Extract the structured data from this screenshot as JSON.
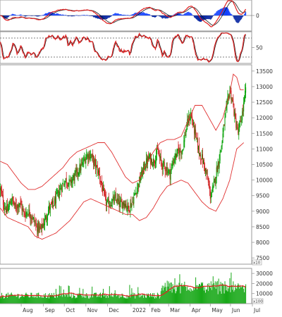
{
  "colors": {
    "background": "#ffffff",
    "border": "#9a9a9a",
    "up_candle": "#00a000",
    "down_candle": "#d02020",
    "bollinger": "#e03030",
    "macd_line": "#e02020",
    "macd_signal": "#1a1a1a",
    "histogram_positive": "#1040ff",
    "histogram_negative": "#0020a0",
    "volume_bar": "#18a818",
    "volume_ma": "#e02020",
    "stoch_line": "#e02020",
    "stoch_signal": "#202020",
    "reference_line": "#555555",
    "axis_text": "#333333"
  },
  "chart_data": [
    {
      "type": "bar",
      "panel": "macd",
      "y_ticks": [
        {
          "value": 0,
          "label": "0"
        }
      ],
      "ylim": [
        -1,
        1
      ]
    },
    {
      "type": "line",
      "panel": "stochastic",
      "y_ticks": [
        {
          "value": 50,
          "label": "50"
        }
      ],
      "reference_lines": [
        80,
        20
      ],
      "ylim": [
        0,
        100
      ]
    },
    {
      "type": "candlestick",
      "panel": "price",
      "ylim": [
        7300,
        13700
      ],
      "y_ticks": [
        {
          "value": 13500,
          "label": "13500"
        },
        {
          "value": 13000,
          "label": "13000"
        },
        {
          "value": 12500,
          "label": "12500"
        },
        {
          "value": 12000,
          "label": "12000"
        },
        {
          "value": 11500,
          "label": "11500"
        },
        {
          "value": 11000,
          "label": "11000"
        },
        {
          "value": 10500,
          "label": "10500"
        },
        {
          "value": 10000,
          "label": "10000"
        },
        {
          "value": 9500,
          "label": "9500"
        },
        {
          "value": 9000,
          "label": "9000"
        },
        {
          "value": 8500,
          "label": "8500"
        },
        {
          "value": 8000,
          "label": "8000"
        },
        {
          "value": 7500,
          "label": "7500"
        }
      ],
      "scale_unit": "x10",
      "close_path": [
        [
          0,
          9700
        ],
        [
          5,
          9200
        ],
        [
          10,
          9000
        ],
        [
          16,
          9400
        ],
        [
          22,
          9100
        ],
        [
          28,
          9300
        ],
        [
          34,
          8900
        ],
        [
          40,
          9000
        ],
        [
          46,
          8800
        ],
        [
          52,
          8500
        ],
        [
          58,
          8400
        ],
        [
          64,
          8700
        ],
        [
          70,
          9100
        ],
        [
          76,
          9200
        ],
        [
          82,
          9500
        ],
        [
          88,
          9800
        ],
        [
          94,
          10000
        ],
        [
          100,
          9900
        ],
        [
          106,
          10100
        ],
        [
          112,
          10300
        ],
        [
          118,
          10500
        ],
        [
          124,
          10800
        ],
        [
          130,
          10800
        ],
        [
          134,
          10600
        ],
        [
          138,
          10400
        ],
        [
          142,
          10200
        ],
        [
          146,
          9800
        ],
        [
          150,
          9400
        ],
        [
          154,
          9200
        ],
        [
          160,
          9300
        ],
        [
          166,
          9400
        ],
        [
          172,
          9200
        ],
        [
          178,
          9300
        ],
        [
          184,
          9100
        ],
        [
          190,
          9300
        ],
        [
          196,
          9700
        ],
        [
          202,
          10100
        ],
        [
          208,
          10500
        ],
        [
          214,
          10700
        ],
        [
          220,
          10600
        ],
        [
          226,
          10900
        ],
        [
          232,
          10500
        ],
        [
          238,
          10400
        ],
        [
          244,
          10200
        ],
        [
          250,
          10700
        ],
        [
          256,
          10900
        ],
        [
          262,
          11000
        ],
        [
          266,
          11500
        ],
        [
          270,
          11900
        ],
        [
          274,
          12100
        ],
        [
          278,
          11700
        ],
        [
          282,
          11300
        ],
        [
          286,
          10900
        ],
        [
          290,
          10700
        ],
        [
          294,
          10400
        ],
        [
          298,
          10000
        ],
        [
          302,
          9500
        ],
        [
          306,
          9700
        ],
        [
          310,
          10200
        ],
        [
          314,
          10600
        ],
        [
          318,
          11100
        ],
        [
          322,
          11800
        ],
        [
          326,
          12400
        ],
        [
          330,
          12900
        ],
        [
          334,
          12500
        ],
        [
          338,
          11900
        ],
        [
          342,
          11500
        ],
        [
          346,
          11900
        ],
        [
          350,
          12400
        ],
        [
          353,
          12900
        ]
      ],
      "bollinger_upper_path": [
        [
          0,
          10600
        ],
        [
          10,
          10500
        ],
        [
          20,
          10200
        ],
        [
          30,
          9900
        ],
        [
          40,
          9700
        ],
        [
          50,
          9700
        ],
        [
          60,
          9800
        ],
        [
          70,
          10000
        ],
        [
          80,
          10200
        ],
        [
          90,
          10400
        ],
        [
          100,
          10700
        ],
        [
          110,
          10900
        ],
        [
          120,
          11000
        ],
        [
          130,
          11100
        ],
        [
          140,
          11200
        ],
        [
          150,
          11200
        ],
        [
          160,
          10900
        ],
        [
          170,
          10500
        ],
        [
          180,
          10100
        ],
        [
          190,
          9900
        ],
        [
          200,
          10000
        ],
        [
          210,
          10500
        ],
        [
          220,
          10900
        ],
        [
          230,
          11200
        ],
        [
          240,
          11300
        ],
        [
          250,
          11300
        ],
        [
          260,
          11400
        ],
        [
          270,
          11900
        ],
        [
          280,
          12400
        ],
        [
          290,
          12400
        ],
        [
          300,
          12000
        ],
        [
          310,
          11600
        ],
        [
          320,
          12000
        ],
        [
          330,
          12800
        ],
        [
          335,
          13400
        ],
        [
          340,
          13300
        ],
        [
          345,
          12900
        ],
        [
          350,
          12900
        ]
      ],
      "bollinger_lower_path": [
        [
          0,
          9100
        ],
        [
          10,
          8800
        ],
        [
          20,
          8700
        ],
        [
          30,
          8600
        ],
        [
          40,
          8500
        ],
        [
          50,
          8200
        ],
        [
          60,
          8100
        ],
        [
          70,
          8200
        ],
        [
          80,
          8300
        ],
        [
          90,
          8500
        ],
        [
          100,
          8700
        ],
        [
          110,
          9000
        ],
        [
          120,
          9300
        ],
        [
          130,
          9400
        ],
        [
          140,
          9300
        ],
        [
          150,
          9200
        ],
        [
          160,
          9100
        ],
        [
          170,
          9000
        ],
        [
          180,
          8900
        ],
        [
          190,
          8900
        ],
        [
          200,
          8700
        ],
        [
          210,
          8800
        ],
        [
          220,
          9100
        ],
        [
          230,
          9500
        ],
        [
          240,
          9800
        ],
        [
          250,
          9900
        ],
        [
          260,
          10000
        ],
        [
          270,
          9900
        ],
        [
          280,
          9600
        ],
        [
          290,
          9300
        ],
        [
          300,
          9100
        ],
        [
          310,
          9000
        ],
        [
          320,
          9400
        ],
        [
          330,
          10000
        ],
        [
          340,
          11000
        ],
        [
          350,
          11200
        ]
      ]
    },
    {
      "type": "bar",
      "panel": "volume",
      "ylim": [
        0,
        35000
      ],
      "y_ticks": [
        {
          "value": 30000,
          "label": "30000"
        },
        {
          "value": 20000,
          "label": "20000"
        },
        {
          "value": 10000,
          "label": "10000"
        }
      ],
      "scale_unit": "x100"
    }
  ],
  "x_axis": {
    "labels": [
      {
        "text": "Aug",
        "idx": 30
      },
      {
        "text": "Sep",
        "idx": 62
      },
      {
        "text": "Oct",
        "idx": 92
      },
      {
        "text": "Nov",
        "idx": 123
      },
      {
        "text": "Dec",
        "idx": 154
      },
      {
        "text": "2022",
        "idx": 188
      },
      {
        "text": "Feb",
        "idx": 215
      },
      {
        "text": "Mar",
        "idx": 242
      },
      {
        "text": "Apr",
        "idx": 273
      },
      {
        "text": "May",
        "idx": 302
      },
      {
        "text": "Jun",
        "idx": 331
      },
      {
        "text": "Jul",
        "idx": 362
      }
    ]
  }
}
